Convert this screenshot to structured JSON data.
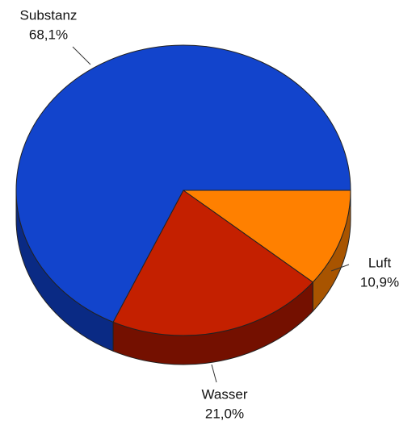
{
  "chart_data": {
    "type": "pie",
    "categories": [
      "Luft",
      "Wasser",
      "Substanz"
    ],
    "values": [
      10.9,
      21.0,
      68.1
    ],
    "value_labels": [
      "10,9%",
      "21,0%",
      "68,1%"
    ],
    "colors": [
      "#ff8000",
      "#c42000",
      "#1244cc"
    ],
    "side_colors": [
      "#a85400",
      "#741000",
      "#0a2a84"
    ]
  }
}
